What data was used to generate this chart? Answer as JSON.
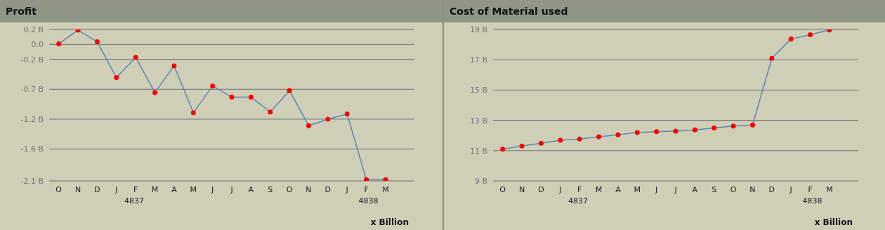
{
  "chart_data": [
    {
      "type": "line",
      "title": "Profit",
      "categories": [
        "O",
        "N",
        "D",
        "J",
        "F",
        "M",
        "A",
        "M",
        "J",
        "J",
        "A",
        "S",
        "O",
        "N",
        "D",
        "J",
        "F",
        "M"
      ],
      "series": [
        {
          "color": "#5a87b4",
          "values": [
            0.01,
            0.22,
            0.04,
            -0.51,
            -0.2,
            -0.74,
            -0.33,
            -1.05,
            -0.64,
            -0.81,
            -0.81,
            -1.04,
            -0.71,
            -1.25,
            -1.15,
            -1.07,
            -2.08,
            -2.08
          ]
        }
      ],
      "ylim": [
        -2.1,
        0.23
      ],
      "yticks": [
        {
          "value": 0.23,
          "label": "0.2 B"
        },
        {
          "value": 0,
          "label": "0.0"
        },
        {
          "value": -0.23,
          "label": "-0.2 B"
        },
        {
          "value": -0.69,
          "label": "-0.7 B"
        },
        {
          "value": -1.15,
          "label": "-1.2 B"
        },
        {
          "value": -1.61,
          "label": "-1.6 B"
        },
        {
          "value": -2.1,
          "label": "-2.1 B"
        }
      ],
      "grid": "y",
      "legend": false,
      "marker": "circle",
      "line_style": "solid",
      "annotations": [
        "4837",
        "4838",
        "x Billion"
      ]
    },
    {
      "type": "line",
      "title": "Cost of Material used",
      "categories": [
        "O",
        "N",
        "D",
        "J",
        "F",
        "M",
        "A",
        "M",
        "J",
        "J",
        "A",
        "S",
        "O",
        "N",
        "D",
        "J",
        "F",
        "M"
      ],
      "series": [
        {
          "color": "#5a87b4",
          "values": [
            11.09,
            11.3,
            11.49,
            11.68,
            11.77,
            11.92,
            12.04,
            12.2,
            12.25,
            12.29,
            12.37,
            12.5,
            12.62,
            12.69,
            17.09,
            18.37,
            18.65,
            18.97
          ]
        }
      ],
      "ylim": [
        9,
        19
      ],
      "yticks": [
        {
          "value": 9,
          "label": "9 B"
        },
        {
          "value": 11,
          "label": "11 B"
        },
        {
          "value": 13,
          "label": "13 B"
        },
        {
          "value": 15,
          "label": "15 B"
        },
        {
          "value": 17,
          "label": "17 B"
        },
        {
          "value": 19,
          "label": "19 B"
        }
      ],
      "grid": "y",
      "legend": false,
      "marker": "circle",
      "line_style": "solid",
      "annotations": [
        "4837",
        "4838",
        "x Billion"
      ]
    }
  ]
}
